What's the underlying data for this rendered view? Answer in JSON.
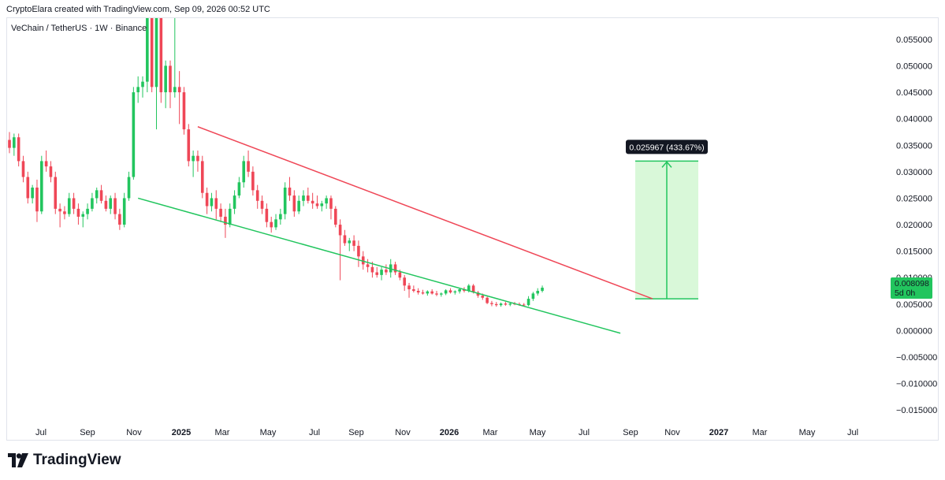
{
  "header": {
    "text": "CryptoElara created with TradingView.com, Sep 09, 2026 00:52 UTC"
  },
  "symbol": {
    "text": "VeChain / TetherUS · 1W · Binance"
  },
  "branding": {
    "name": "TradingView",
    "logo_icon": "tradingview-logo-icon"
  },
  "colors": {
    "up": "#22c55e",
    "down": "#ef4757",
    "resistance": "#ef4757",
    "support": "#22c55e",
    "target_fill": "#d9f8d9",
    "target_line": "#22c55e",
    "price_label_bg": "#22c55e",
    "annotation_bg": "#131722"
  },
  "chart_data": {
    "type": "candlestick",
    "title": "",
    "timeframe": "1W",
    "exchange": "Binance",
    "ylim": [
      -0.0175,
      0.059
    ],
    "y_ticks": [
      "0.055000",
      "0.050000",
      "0.045000",
      "0.040000",
      "0.035000",
      "0.030000",
      "0.025000",
      "0.020000",
      "0.015000",
      "0.010000",
      "0.005000",
      "0.000000",
      "−0.005000",
      "−0.010000",
      "−0.015000"
    ],
    "x_ticks": [
      {
        "label": "Jul",
        "bold": false
      },
      {
        "label": "Sep",
        "bold": false
      },
      {
        "label": "Nov",
        "bold": false
      },
      {
        "label": "2025",
        "bold": true
      },
      {
        "label": "Mar",
        "bold": false
      },
      {
        "label": "May",
        "bold": false
      },
      {
        "label": "Jul",
        "bold": false
      },
      {
        "label": "Sep",
        "bold": false
      },
      {
        "label": "Nov",
        "bold": false
      },
      {
        "label": "2026",
        "bold": true
      },
      {
        "label": "Mar",
        "bold": false
      },
      {
        "label": "May",
        "bold": false
      },
      {
        "label": "Jul",
        "bold": false
      },
      {
        "label": "Sep",
        "bold": false
      },
      {
        "label": "Nov",
        "bold": false
      },
      {
        "label": "2027",
        "bold": true
      },
      {
        "label": "Mar",
        "bold": false
      },
      {
        "label": "May",
        "bold": false
      },
      {
        "label": "Jul",
        "bold": false
      }
    ],
    "candles": [
      {
        "o": 0.036,
        "h": 0.0375,
        "l": 0.0335,
        "c": 0.0345
      },
      {
        "o": 0.0345,
        "h": 0.0372,
        "l": 0.033,
        "c": 0.0365
      },
      {
        "o": 0.0365,
        "h": 0.0372,
        "l": 0.031,
        "c": 0.032
      },
      {
        "o": 0.032,
        "h": 0.033,
        "l": 0.028,
        "c": 0.029
      },
      {
        "o": 0.029,
        "h": 0.03,
        "l": 0.024,
        "c": 0.025
      },
      {
        "o": 0.025,
        "h": 0.0275,
        "l": 0.024,
        "c": 0.027
      },
      {
        "o": 0.027,
        "h": 0.0285,
        "l": 0.0205,
        "c": 0.0225
      },
      {
        "o": 0.0225,
        "h": 0.033,
        "l": 0.022,
        "c": 0.032
      },
      {
        "o": 0.032,
        "h": 0.034,
        "l": 0.03,
        "c": 0.031
      },
      {
        "o": 0.031,
        "h": 0.032,
        "l": 0.028,
        "c": 0.029
      },
      {
        "o": 0.029,
        "h": 0.03,
        "l": 0.022,
        "c": 0.023
      },
      {
        "o": 0.023,
        "h": 0.024,
        "l": 0.0195,
        "c": 0.0225
      },
      {
        "o": 0.0225,
        "h": 0.0235,
        "l": 0.021,
        "c": 0.022
      },
      {
        "o": 0.022,
        "h": 0.026,
        "l": 0.0215,
        "c": 0.025
      },
      {
        "o": 0.025,
        "h": 0.026,
        "l": 0.022,
        "c": 0.023
      },
      {
        "o": 0.023,
        "h": 0.024,
        "l": 0.02,
        "c": 0.0215
      },
      {
        "o": 0.0215,
        "h": 0.0225,
        "l": 0.0195,
        "c": 0.022
      },
      {
        "o": 0.022,
        "h": 0.024,
        "l": 0.021,
        "c": 0.023
      },
      {
        "o": 0.023,
        "h": 0.026,
        "l": 0.0225,
        "c": 0.025
      },
      {
        "o": 0.025,
        "h": 0.027,
        "l": 0.024,
        "c": 0.0265
      },
      {
        "o": 0.0265,
        "h": 0.0275,
        "l": 0.024,
        "c": 0.0245
      },
      {
        "o": 0.0245,
        "h": 0.0255,
        "l": 0.0225,
        "c": 0.023
      },
      {
        "o": 0.023,
        "h": 0.0255,
        "l": 0.022,
        "c": 0.025
      },
      {
        "o": 0.025,
        "h": 0.026,
        "l": 0.021,
        "c": 0.022
      },
      {
        "o": 0.022,
        "h": 0.023,
        "l": 0.019,
        "c": 0.02
      },
      {
        "o": 0.02,
        "h": 0.026,
        "l": 0.0195,
        "c": 0.025
      },
      {
        "o": 0.025,
        "h": 0.03,
        "l": 0.0245,
        "c": 0.029
      },
      {
        "o": 0.029,
        "h": 0.046,
        "l": 0.0285,
        "c": 0.045
      },
      {
        "o": 0.045,
        "h": 0.048,
        "l": 0.043,
        "c": 0.046
      },
      {
        "o": 0.046,
        "h": 0.048,
        "l": 0.044,
        "c": 0.047
      },
      {
        "o": 0.047,
        "h": 0.06,
        "l": 0.045,
        "c": 0.059
      },
      {
        "o": 0.059,
        "h": 0.06,
        "l": 0.045,
        "c": 0.046
      },
      {
        "o": 0.046,
        "h": 0.06,
        "l": 0.038,
        "c": 0.059
      },
      {
        "o": 0.059,
        "h": 0.06,
        "l": 0.043,
        "c": 0.045
      },
      {
        "o": 0.045,
        "h": 0.051,
        "l": 0.042,
        "c": 0.05
      },
      {
        "o": 0.05,
        "h": 0.051,
        "l": 0.042,
        "c": 0.045
      },
      {
        "o": 0.045,
        "h": 0.06,
        "l": 0.044,
        "c": 0.046
      },
      {
        "o": 0.046,
        "h": 0.049,
        "l": 0.039,
        "c": 0.045
      },
      {
        "o": 0.045,
        "h": 0.046,
        "l": 0.037,
        "c": 0.038
      },
      {
        "o": 0.038,
        "h": 0.039,
        "l": 0.031,
        "c": 0.032
      },
      {
        "o": 0.032,
        "h": 0.034,
        "l": 0.029,
        "c": 0.033
      },
      {
        "o": 0.033,
        "h": 0.034,
        "l": 0.03,
        "c": 0.032
      },
      {
        "o": 0.032,
        "h": 0.033,
        "l": 0.025,
        "c": 0.026
      },
      {
        "o": 0.026,
        "h": 0.027,
        "l": 0.022,
        "c": 0.0235
      },
      {
        "o": 0.0235,
        "h": 0.026,
        "l": 0.0225,
        "c": 0.025
      },
      {
        "o": 0.025,
        "h": 0.0265,
        "l": 0.021,
        "c": 0.023
      },
      {
        "o": 0.023,
        "h": 0.024,
        "l": 0.0205,
        "c": 0.0215
      },
      {
        "o": 0.0215,
        "h": 0.023,
        "l": 0.0175,
        "c": 0.02
      },
      {
        "o": 0.02,
        "h": 0.024,
        "l": 0.0195,
        "c": 0.023
      },
      {
        "o": 0.023,
        "h": 0.0265,
        "l": 0.022,
        "c": 0.0255
      },
      {
        "o": 0.0255,
        "h": 0.029,
        "l": 0.025,
        "c": 0.028
      },
      {
        "o": 0.028,
        "h": 0.033,
        "l": 0.027,
        "c": 0.032
      },
      {
        "o": 0.032,
        "h": 0.034,
        "l": 0.029,
        "c": 0.03
      },
      {
        "o": 0.03,
        "h": 0.031,
        "l": 0.0255,
        "c": 0.0265
      },
      {
        "o": 0.0265,
        "h": 0.0275,
        "l": 0.023,
        "c": 0.0245
      },
      {
        "o": 0.0245,
        "h": 0.0255,
        "l": 0.022,
        "c": 0.023
      },
      {
        "o": 0.023,
        "h": 0.024,
        "l": 0.0195,
        "c": 0.0205
      },
      {
        "o": 0.0205,
        "h": 0.0215,
        "l": 0.0185,
        "c": 0.0195
      },
      {
        "o": 0.0195,
        "h": 0.022,
        "l": 0.019,
        "c": 0.021
      },
      {
        "o": 0.021,
        "h": 0.023,
        "l": 0.02,
        "c": 0.022
      },
      {
        "o": 0.022,
        "h": 0.028,
        "l": 0.021,
        "c": 0.027
      },
      {
        "o": 0.027,
        "h": 0.029,
        "l": 0.0245,
        "c": 0.0255
      },
      {
        "o": 0.0255,
        "h": 0.0265,
        "l": 0.0215,
        "c": 0.0225
      },
      {
        "o": 0.0225,
        "h": 0.0255,
        "l": 0.022,
        "c": 0.0245
      },
      {
        "o": 0.0245,
        "h": 0.0265,
        "l": 0.0235,
        "c": 0.0255
      },
      {
        "o": 0.0255,
        "h": 0.027,
        "l": 0.024,
        "c": 0.0245
      },
      {
        "o": 0.0245,
        "h": 0.026,
        "l": 0.023,
        "c": 0.024
      },
      {
        "o": 0.024,
        "h": 0.0255,
        "l": 0.023,
        "c": 0.0235
      },
      {
        "o": 0.0235,
        "h": 0.0245,
        "l": 0.0225,
        "c": 0.024
      },
      {
        "o": 0.024,
        "h": 0.0255,
        "l": 0.023,
        "c": 0.025
      },
      {
        "o": 0.025,
        "h": 0.0255,
        "l": 0.021,
        "c": 0.023
      },
      {
        "o": 0.023,
        "h": 0.0235,
        "l": 0.0195,
        "c": 0.02
      },
      {
        "o": 0.02,
        "h": 0.021,
        "l": 0.0095,
        "c": 0.018
      },
      {
        "o": 0.018,
        "h": 0.019,
        "l": 0.016,
        "c": 0.0165
      },
      {
        "o": 0.0165,
        "h": 0.0175,
        "l": 0.015,
        "c": 0.017
      },
      {
        "o": 0.017,
        "h": 0.018,
        "l": 0.015,
        "c": 0.016
      },
      {
        "o": 0.016,
        "h": 0.017,
        "l": 0.012,
        "c": 0.014
      },
      {
        "o": 0.014,
        "h": 0.015,
        "l": 0.0115,
        "c": 0.0125
      },
      {
        "o": 0.0125,
        "h": 0.0135,
        "l": 0.011,
        "c": 0.012
      },
      {
        "o": 0.012,
        "h": 0.013,
        "l": 0.01,
        "c": 0.011
      },
      {
        "o": 0.011,
        "h": 0.012,
        "l": 0.01,
        "c": 0.0105
      },
      {
        "o": 0.0105,
        "h": 0.012,
        "l": 0.0095,
        "c": 0.0115
      },
      {
        "o": 0.0115,
        "h": 0.0125,
        "l": 0.0105,
        "c": 0.011
      },
      {
        "o": 0.011,
        "h": 0.0135,
        "l": 0.01,
        "c": 0.0125
      },
      {
        "o": 0.0125,
        "h": 0.013,
        "l": 0.0105,
        "c": 0.011
      },
      {
        "o": 0.011,
        "h": 0.0115,
        "l": 0.0095,
        "c": 0.01
      },
      {
        "o": 0.01,
        "h": 0.0105,
        "l": 0.0075,
        "c": 0.0085
      },
      {
        "o": 0.0085,
        "h": 0.009,
        "l": 0.0062,
        "c": 0.0078
      },
      {
        "o": 0.0078,
        "h": 0.0085,
        "l": 0.0072,
        "c": 0.0075
      },
      {
        "o": 0.0075,
        "h": 0.008,
        "l": 0.0068,
        "c": 0.0072
      },
      {
        "o": 0.0072,
        "h": 0.0077,
        "l": 0.0068,
        "c": 0.007
      },
      {
        "o": 0.007,
        "h": 0.0076,
        "l": 0.0066,
        "c": 0.0074
      },
      {
        "o": 0.0074,
        "h": 0.0078,
        "l": 0.0068,
        "c": 0.007
      },
      {
        "o": 0.007,
        "h": 0.0075,
        "l": 0.0065,
        "c": 0.0068
      },
      {
        "o": 0.0068,
        "h": 0.0072,
        "l": 0.0064,
        "c": 0.007
      },
      {
        "o": 0.007,
        "h": 0.0078,
        "l": 0.0067,
        "c": 0.0076
      },
      {
        "o": 0.0076,
        "h": 0.008,
        "l": 0.007,
        "c": 0.0072
      },
      {
        "o": 0.0072,
        "h": 0.0076,
        "l": 0.0068,
        "c": 0.0074
      },
      {
        "o": 0.0074,
        "h": 0.008,
        "l": 0.007,
        "c": 0.0078
      },
      {
        "o": 0.0078,
        "h": 0.0082,
        "l": 0.0072,
        "c": 0.0075
      },
      {
        "o": 0.0075,
        "h": 0.0088,
        "l": 0.0072,
        "c": 0.0085
      },
      {
        "o": 0.0085,
        "h": 0.0088,
        "l": 0.007,
        "c": 0.0072
      },
      {
        "o": 0.0072,
        "h": 0.0075,
        "l": 0.0062,
        "c": 0.0066
      },
      {
        "o": 0.0066,
        "h": 0.007,
        "l": 0.0058,
        "c": 0.0062
      },
      {
        "o": 0.0062,
        "h": 0.0064,
        "l": 0.005,
        "c": 0.0052
      },
      {
        "o": 0.0052,
        "h": 0.0056,
        "l": 0.0046,
        "c": 0.005
      },
      {
        "o": 0.005,
        "h": 0.0054,
        "l": 0.0045,
        "c": 0.0048
      },
      {
        "o": 0.0048,
        "h": 0.0053,
        "l": 0.0045,
        "c": 0.0051
      },
      {
        "o": 0.0051,
        "h": 0.0054,
        "l": 0.0047,
        "c": 0.0049
      },
      {
        "o": 0.0049,
        "h": 0.0053,
        "l": 0.0046,
        "c": 0.0051
      },
      {
        "o": 0.0051,
        "h": 0.0054,
        "l": 0.0048,
        "c": 0.005
      },
      {
        "o": 0.005,
        "h": 0.0053,
        "l": 0.0047,
        "c": 0.0049
      },
      {
        "o": 0.0049,
        "h": 0.0052,
        "l": 0.0046,
        "c": 0.0048
      },
      {
        "o": 0.0048,
        "h": 0.0065,
        "l": 0.0046,
        "c": 0.006
      },
      {
        "o": 0.006,
        "h": 0.0073,
        "l": 0.0056,
        "c": 0.007
      },
      {
        "o": 0.007,
        "h": 0.008,
        "l": 0.0066,
        "c": 0.0075
      },
      {
        "o": 0.0075,
        "h": 0.0085,
        "l": 0.0072,
        "c": 0.0081
      }
    ],
    "trendlines": [
      {
        "name": "resistance",
        "from": {
          "i": 41,
          "y": 0.0385
        },
        "to": {
          "i": 140,
          "y": 0.006
        }
      },
      {
        "name": "support",
        "from": {
          "i": 28,
          "y": 0.025
        },
        "to": {
          "i": 133,
          "y": -0.0005
        }
      }
    ],
    "target_projection": {
      "from_price": 0.006,
      "to_price": 0.032,
      "label": "0.025967 (433.67%)"
    },
    "last_price": {
      "value_label": "0.008098",
      "countdown_label": "5d 0h"
    }
  }
}
